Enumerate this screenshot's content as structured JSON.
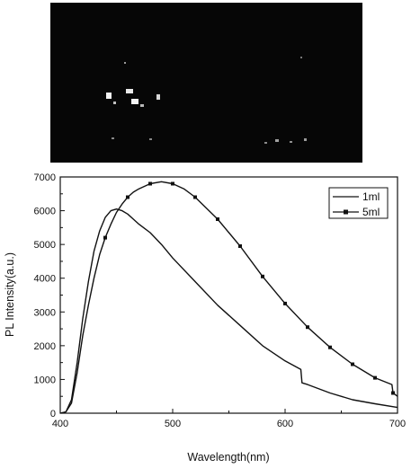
{
  "photo": {
    "description_colors": {
      "background": "#060606",
      "glow": "#f2f2f2"
    }
  },
  "chart_data": {
    "type": "line",
    "xlabel": "Wavelength(nm)",
    "ylabel": "PL Intensity(a.u.)",
    "xlim": [
      400,
      700
    ],
    "ylim": [
      0,
      7000
    ],
    "x_ticks": [
      "400",
      "500",
      "600",
      "700"
    ],
    "y_ticks": [
      "0",
      "1000",
      "2000",
      "3000",
      "4000",
      "5000",
      "6000",
      "7000"
    ],
    "grid": false,
    "legend_position": "top-right",
    "series": [
      {
        "name": "1ml",
        "marker": "none",
        "x": [
          400,
          405,
          410,
          415,
          420,
          425,
          430,
          435,
          440,
          445,
          450,
          455,
          460,
          465,
          470,
          480,
          490,
          500,
          520,
          540,
          560,
          580,
          600,
          614,
          615,
          620,
          640,
          660,
          680,
          700
        ],
        "y": [
          0,
          40,
          400,
          1500,
          2800,
          3900,
          4800,
          5400,
          5800,
          6000,
          6050,
          6000,
          5900,
          5750,
          5600,
          5350,
          5000,
          4600,
          3900,
          3200,
          2600,
          2000,
          1550,
          1300,
          900,
          850,
          600,
          400,
          280,
          170
        ]
      },
      {
        "name": "5ml",
        "marker": "square",
        "x": [
          400,
          405,
          410,
          415,
          420,
          425,
          430,
          435,
          440,
          445,
          450,
          455,
          460,
          465,
          470,
          480,
          490,
          500,
          510,
          520,
          540,
          560,
          580,
          600,
          620,
          640,
          660,
          680,
          695,
          696,
          700
        ],
        "y": [
          0,
          40,
          300,
          1200,
          2300,
          3200,
          4000,
          4700,
          5200,
          5600,
          5950,
          6200,
          6400,
          6550,
          6650,
          6800,
          6860,
          6800,
          6650,
          6400,
          5750,
          4950,
          4050,
          3250,
          2550,
          1950,
          1450,
          1050,
          850,
          600,
          500
        ],
        "marker_x": [
          440,
          460,
          480,
          500,
          520,
          540,
          560,
          580,
          600,
          620,
          640,
          660,
          680,
          696
        ]
      }
    ]
  }
}
